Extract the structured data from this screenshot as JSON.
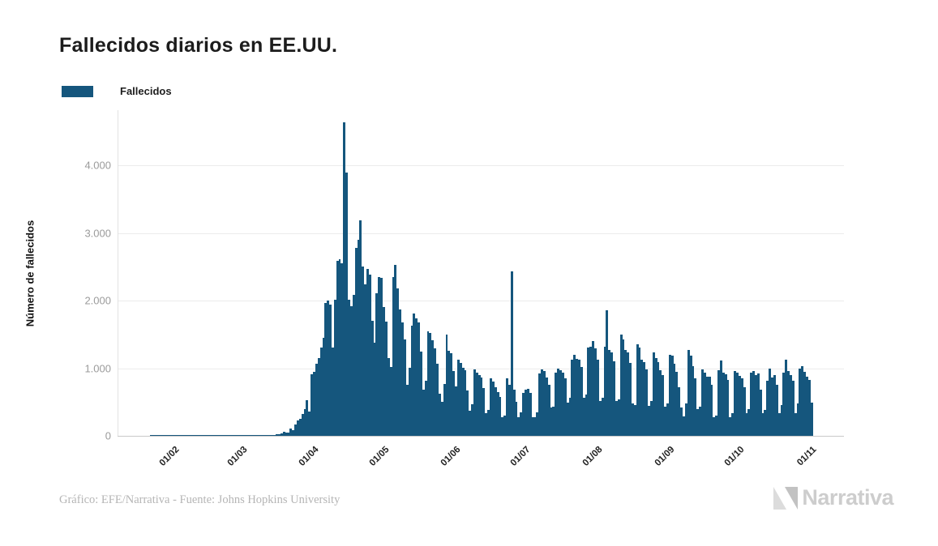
{
  "title": "Fallecidos diarios en EE.UU.",
  "legend": {
    "label": "Fallecidos",
    "color": "#15567d"
  },
  "footer": {
    "credit": "Gráfico: EFE/Narrativa - Fuente: Johns Hopkins University"
  },
  "branding": {
    "wordmark": "Narrativa"
  },
  "chart_data": {
    "type": "bar",
    "title": "Fallecidos diarios en EE.UU.",
    "series_name": "Fallecidos",
    "xlabel": "",
    "ylabel": "Número de fallecidos",
    "bar_color": "#15567d",
    "start_date": "22/01/2020",
    "frequency": "daily",
    "grid": true,
    "legend_position": "top-left",
    "x_tick_labels": [
      "01/02",
      "01/03",
      "01/04",
      "01/05",
      "01/06",
      "01/07",
      "01/08",
      "01/09",
      "01/10",
      "01/11"
    ],
    "x_tick_day_offsets": [
      10,
      39,
      70,
      100,
      131,
      161,
      192,
      223,
      253,
      284
    ],
    "y_ticks": [
      0,
      1000,
      2000,
      3000,
      4000
    ],
    "y_tick_labels": [
      "0",
      "1.000",
      "2.000",
      "3.000",
      "4.000"
    ],
    "ylim": [
      0,
      4750
    ],
    "values": [
      0,
      0,
      0,
      0,
      0,
      0,
      0,
      0,
      0,
      0,
      0,
      0,
      0,
      0,
      0,
      0,
      0,
      0,
      0,
      0,
      0,
      0,
      0,
      0,
      0,
      0,
      0,
      0,
      0,
      0,
      0,
      0,
      0,
      0,
      0,
      0,
      0,
      1,
      1,
      1,
      1,
      2,
      3,
      2,
      3,
      4,
      3,
      4,
      4,
      6,
      7,
      6,
      10,
      11,
      18,
      23,
      41,
      57,
      49,
      46,
      111,
      80,
      164,
      225,
      246,
      327,
      401,
      525,
      363,
      912,
      950,
      1060,
      1150,
      1300,
      1450,
      1970,
      2000,
      1940,
      1310,
      2010,
      2590,
      2610,
      2550,
      4630,
      3890,
      2010,
      1915,
      2080,
      2775,
      2900,
      3180,
      2505,
      2235,
      2470,
      2380,
      1700,
      1380,
      2110,
      2350,
      2330,
      1900,
      1690,
      1150,
      1020,
      2350,
      2530,
      2180,
      1870,
      1680,
      1420,
      750,
      1010,
      1630,
      1810,
      1740,
      1680,
      1250,
      680,
      810,
      1550,
      1520,
      1410,
      1290,
      1070,
      620,
      500,
      770,
      1500,
      1260,
      1220,
      960,
      730,
      1130,
      1080,
      1010,
      970,
      670,
      370,
      470,
      980,
      940,
      900,
      860,
      710,
      330,
      380,
      850,
      800,
      720,
      650,
      580,
      270,
      300,
      850,
      760,
      2430,
      680,
      500,
      280,
      350,
      630,
      680,
      700,
      630,
      280,
      270,
      350,
      920,
      980,
      960,
      860,
      750,
      420,
      430,
      940,
      990,
      970,
      930,
      850,
      490,
      560,
      1120,
      1200,
      1140,
      1130,
      1020,
      560,
      610,
      1300,
      1320,
      1400,
      1290,
      1130,
      520,
      560,
      1320,
      1860,
      1270,
      1230,
      1100,
      510,
      540,
      1500,
      1430,
      1270,
      1230,
      1080,
      480,
      450,
      1350,
      1300,
      1130,
      1090,
      980,
      440,
      510,
      1230,
      1150,
      1090,
      970,
      900,
      430,
      480,
      1200,
      1180,
      1060,
      950,
      720,
      420,
      290,
      480,
      1270,
      1180,
      1030,
      850,
      390,
      430,
      980,
      940,
      880,
      870,
      760,
      270,
      300,
      970,
      1110,
      940,
      910,
      830,
      270,
      340,
      960,
      940,
      890,
      850,
      720,
      330,
      390,
      930,
      960,
      900,
      920,
      680,
      340,
      380,
      820,
      990,
      860,
      900,
      760,
      340,
      450,
      930,
      1130,
      960,
      900,
      820,
      340,
      480,
      990,
      1025,
      950,
      870,
      830,
      490
    ]
  }
}
